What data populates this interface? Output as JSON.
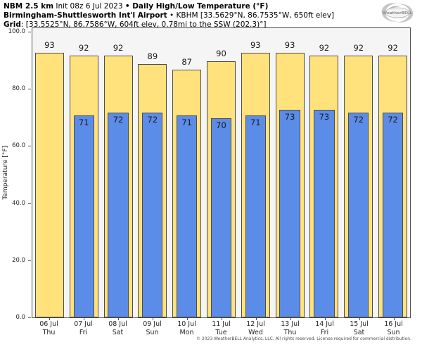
{
  "header": {
    "line1_model": "NBM 2.5 km",
    "line1_init": " Init 08z 6 Jul 2023 ",
    "line1_product": "• Daily High/Low Temperature (°F)",
    "line2_station": "Birmingham-Shuttlesworth Int'l Airport",
    "line2_meta": " • KBHM [33.5629°N, 86.7535°W, 650ft elev]",
    "line3_label": "Grid",
    "line3_meta": ": [33.5525°N, 86.7586°W, 604ft elev, 0.78mi to the SSW (202.3)°]"
  },
  "logo": {
    "brand": "WeatherBELL",
    "sub": "Analytics LLC"
  },
  "footer": {
    "copyright": "© 2023 WeatherBELL Analytics, LLC. All rights reserved. License required for commercial distribution."
  },
  "colors": {
    "high_bar": "#ffe27c",
    "low_bar": "#5b8ce8",
    "bar_border": "#4d4d4d",
    "plot_background": "#f5f5f5"
  },
  "chart_data": {
    "type": "bar",
    "title": "Daily High/Low Temperature (°F)",
    "subtitle": "NBM 2.5 km Init 08z 6 Jul 2023 — Birmingham-Shuttlesworth Int'l Airport (KBHM)",
    "xlabel": "",
    "ylabel": "Temperature [°F]",
    "ylim": [
      0,
      101.7
    ],
    "yticks": [
      0,
      20,
      40,
      60,
      80,
      100
    ],
    "ytick_labels": [
      "0.0",
      "20.0",
      "40.0",
      "60.0",
      "80.0",
      "100.0"
    ],
    "grid": false,
    "legend_position": "none",
    "categories": [
      {
        "date": "06 Jul",
        "day": "Thu"
      },
      {
        "date": "07 Jul",
        "day": "Fri"
      },
      {
        "date": "08 Jul",
        "day": "Sat"
      },
      {
        "date": "09 Jul",
        "day": "Sun"
      },
      {
        "date": "10 Jul",
        "day": "Mon"
      },
      {
        "date": "11 Jul",
        "day": "Tue"
      },
      {
        "date": "12 Jul",
        "day": "Wed"
      },
      {
        "date": "13 Jul",
        "day": "Thu"
      },
      {
        "date": "14 Jul",
        "day": "Fri"
      },
      {
        "date": "15 Jul",
        "day": "Sat"
      },
      {
        "date": "16 Jul",
        "day": "Sun"
      }
    ],
    "series": [
      {
        "name": "Daily High",
        "color": "#ffe27c",
        "values": [
          93,
          92,
          92,
          89,
          87,
          90,
          93,
          93,
          92,
          92,
          92
        ]
      },
      {
        "name": "Daily Low",
        "color": "#5b8ce8",
        "values": [
          null,
          71,
          72,
          72,
          71,
          70,
          71,
          73,
          73,
          72,
          72
        ]
      }
    ]
  }
}
